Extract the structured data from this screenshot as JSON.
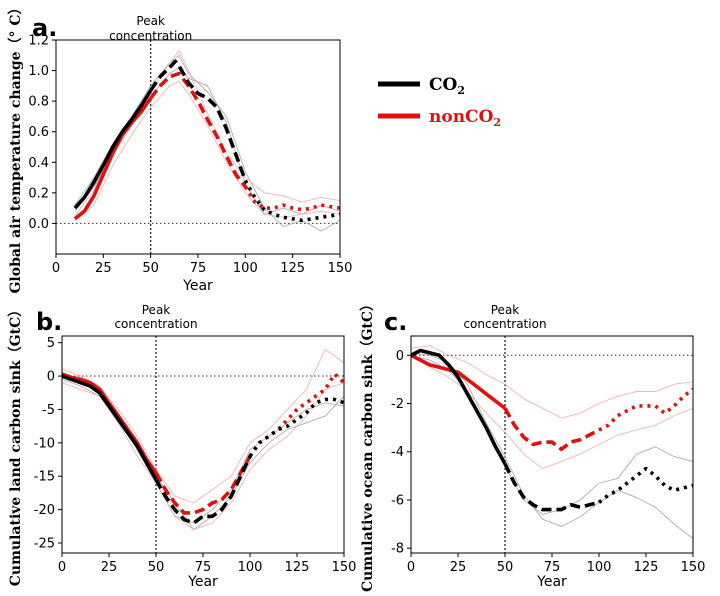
{
  "legend": {
    "items": [
      {
        "main": "CO",
        "sub": "2",
        "color": "#000000"
      },
      {
        "main": "nonCO",
        "sub": "2",
        "color": "#e01010"
      }
    ]
  },
  "colors": {
    "co2": "#000000",
    "nonco2": "#e01010",
    "co2_faint": "#9a9a9a",
    "nonco2_faint": "#f3a0a0"
  },
  "chart_data": [
    {
      "type": "line",
      "panel_label": "a.",
      "annotation": "Peak\nconcentration",
      "xlabel": "Year",
      "ylabel": "Global air temperature change（° C）",
      "xlim": [
        0,
        150
      ],
      "ylim": [
        -0.2,
        1.2
      ],
      "xticks": [
        "0",
        "25",
        "50",
        "75",
        "100",
        "125",
        "150"
      ],
      "yticks": [
        "0.0",
        "0.2",
        "0.4",
        "0.6",
        "0.8",
        "1.0",
        "1.2"
      ],
      "vline_x": 50,
      "hline_y": 0,
      "segment_breaks": [
        50,
        100
      ],
      "series": [
        {
          "name": "CO2",
          "x": [
            10,
            15,
            20,
            25,
            30,
            35,
            40,
            45,
            50,
            55,
            60,
            63,
            65,
            70,
            75,
            80,
            85,
            90,
            95,
            100,
            105,
            110,
            115,
            120,
            125,
            130,
            135,
            140,
            145,
            150
          ],
          "y": [
            0.1,
            0.17,
            0.27,
            0.38,
            0.5,
            0.6,
            0.68,
            0.77,
            0.87,
            0.96,
            1.02,
            1.06,
            1.03,
            0.92,
            0.85,
            0.82,
            0.76,
            0.62,
            0.45,
            0.28,
            0.17,
            0.09,
            0.06,
            0.04,
            0.03,
            0.02,
            0.03,
            0.04,
            0.05,
            0.06
          ]
        },
        {
          "name": "nonCO2",
          "x": [
            10,
            15,
            20,
            25,
            30,
            35,
            40,
            45,
            50,
            55,
            60,
            65,
            70,
            75,
            80,
            85,
            90,
            95,
            100,
            105,
            110,
            115,
            120,
            125,
            130,
            135,
            140,
            145,
            150
          ],
          "y": [
            0.03,
            0.08,
            0.18,
            0.32,
            0.46,
            0.58,
            0.66,
            0.73,
            0.82,
            0.9,
            0.96,
            0.98,
            0.9,
            0.8,
            0.68,
            0.57,
            0.44,
            0.32,
            0.24,
            0.14,
            0.1,
            0.1,
            0.12,
            0.1,
            0.09,
            0.1,
            0.12,
            0.11,
            0.1
          ]
        }
      ],
      "faint_series": [
        {
          "group": "CO2",
          "x": [
            10,
            20,
            30,
            40,
            50,
            60,
            65,
            70,
            80,
            90,
            100,
            110,
            120,
            130,
            140,
            150
          ],
          "y": [
            0.12,
            0.3,
            0.52,
            0.7,
            0.9,
            1.05,
            1.1,
            0.98,
            0.86,
            0.7,
            0.34,
            0.1,
            -0.02,
            0.02,
            -0.05,
            0.02
          ]
        },
        {
          "group": "CO2",
          "x": [
            10,
            20,
            30,
            40,
            50,
            60,
            65,
            70,
            80,
            90,
            100,
            110,
            120,
            130,
            140,
            150
          ],
          "y": [
            0.08,
            0.24,
            0.45,
            0.64,
            0.83,
            0.98,
            1.02,
            0.95,
            0.9,
            0.66,
            0.26,
            0.06,
            0.1,
            0.06,
            0.12,
            0.08
          ]
        },
        {
          "group": "nonCO2",
          "x": [
            10,
            20,
            30,
            40,
            50,
            60,
            65,
            70,
            80,
            90,
            100,
            110,
            120,
            130,
            140,
            150
          ],
          "y": [
            0.05,
            0.22,
            0.5,
            0.7,
            0.86,
            1.05,
            1.13,
            1.0,
            0.72,
            0.46,
            0.3,
            0.2,
            0.18,
            0.14,
            0.17,
            0.15
          ]
        },
        {
          "group": "nonCO2",
          "x": [
            10,
            20,
            30,
            40,
            50,
            60,
            65,
            70,
            80,
            90,
            100,
            110,
            120,
            130,
            140,
            150
          ],
          "y": [
            0.02,
            0.12,
            0.38,
            0.58,
            0.76,
            0.9,
            0.93,
            0.85,
            0.64,
            0.4,
            0.2,
            0.06,
            0.04,
            0.06,
            0.08,
            0.06
          ]
        }
      ]
    },
    {
      "type": "line",
      "panel_label": "b.",
      "annotation": "Peak\nconcentration",
      "xlabel": "Year",
      "ylabel": "Cumulative land carbon sink（GtC）",
      "xlim": [
        0,
        150
      ],
      "ylim": [
        -26.5,
        6
      ],
      "xticks": [
        "0",
        "25",
        "50",
        "75",
        "100",
        "125",
        "150"
      ],
      "yticks": [
        "5",
        "0",
        "-5",
        "-10",
        "-15",
        "-20",
        "-25"
      ],
      "vline_x": 50,
      "hline_y": 0,
      "segment_breaks": [
        50,
        100
      ],
      "series": [
        {
          "name": "CO2",
          "x": [
            0,
            5,
            10,
            15,
            20,
            25,
            30,
            35,
            40,
            45,
            50,
            55,
            60,
            65,
            70,
            75,
            80,
            85,
            90,
            95,
            100,
            105,
            110,
            115,
            120,
            125,
            130,
            135,
            140,
            145,
            150
          ],
          "y": [
            0,
            -0.5,
            -1,
            -1.5,
            -2.5,
            -4.5,
            -6.5,
            -8.5,
            -10.5,
            -13,
            -15.5,
            -18,
            -20,
            -21.5,
            -22,
            -21,
            -21,
            -20,
            -18,
            -15,
            -12,
            -10,
            -9,
            -8,
            -7.5,
            -6.5,
            -5.5,
            -4,
            -3.5,
            -3.5,
            -4
          ]
        },
        {
          "name": "nonCO2",
          "x": [
            0,
            5,
            10,
            15,
            20,
            25,
            30,
            35,
            40,
            45,
            50,
            55,
            60,
            65,
            70,
            75,
            80,
            85,
            90,
            95,
            100,
            105,
            110,
            115,
            120,
            125,
            130,
            135,
            140,
            145,
            150
          ],
          "y": [
            0.3,
            -0.2,
            -0.5,
            -1,
            -2,
            -4,
            -6,
            -8,
            -10,
            -12.5,
            -14.5,
            -17,
            -19,
            -20.5,
            -20.5,
            -20,
            -19,
            -18.5,
            -17,
            -14.5,
            -12,
            -10,
            -9,
            -8,
            -6.5,
            -5,
            -4,
            -3,
            -2,
            0.3,
            -1
          ]
        }
      ],
      "faint_series": [
        {
          "group": "CO2",
          "x": [
            0,
            10,
            20,
            30,
            40,
            50,
            60,
            70,
            80,
            90,
            100,
            110,
            120,
            130,
            140,
            150
          ],
          "y": [
            0.5,
            -0.5,
            -2,
            -6,
            -11,
            -16,
            -21,
            -22,
            -20,
            -17,
            -11,
            -9,
            -7,
            -5,
            -4,
            -4.5
          ]
        },
        {
          "group": "CO2",
          "x": [
            0,
            10,
            20,
            30,
            40,
            50,
            60,
            70,
            80,
            90,
            100,
            110,
            120,
            130,
            140,
            150
          ],
          "y": [
            -0.5,
            -1.5,
            -3,
            -7,
            -10,
            -15,
            -19,
            -23,
            -21,
            -18,
            -13,
            -10,
            -8,
            -7,
            -6,
            -3
          ]
        },
        {
          "group": "nonCO2",
          "x": [
            0,
            10,
            20,
            30,
            40,
            50,
            60,
            70,
            80,
            90,
            100,
            110,
            120,
            130,
            140,
            150
          ],
          "y": [
            1,
            0,
            -1.5,
            -5,
            -9,
            -14,
            -18,
            -19,
            -17,
            -15,
            -10,
            -8,
            -5,
            -2,
            4,
            2
          ]
        },
        {
          "group": "nonCO2",
          "x": [
            0,
            10,
            20,
            30,
            40,
            50,
            60,
            70,
            80,
            90,
            100,
            110,
            120,
            130,
            140,
            150
          ],
          "y": [
            -1,
            -2,
            -3,
            -7,
            -12,
            -16,
            -21,
            -23,
            -22,
            -19,
            -14,
            -11,
            -9,
            -6,
            -2,
            -1
          ]
        }
      ]
    },
    {
      "type": "line",
      "panel_label": "c.",
      "annotation": "Peak\nconcentration",
      "xlabel": "Year",
      "ylabel": "Cumulative ocean carbon sink（GtC）",
      "xlim": [
        0,
        150
      ],
      "ylim": [
        -8.2,
        0.8
      ],
      "xticks": [
        "0",
        "25",
        "50",
        "75",
        "100",
        "125",
        "150"
      ],
      "yticks": [
        "0",
        "-2",
        "-4",
        "-6",
        "-8"
      ],
      "vline_x": 50,
      "hline_y": 0,
      "segment_breaks": [
        50,
        100
      ],
      "series": [
        {
          "name": "CO2",
          "x": [
            0,
            5,
            10,
            15,
            20,
            25,
            30,
            35,
            40,
            45,
            50,
            55,
            60,
            65,
            70,
            75,
            80,
            85,
            90,
            95,
            100,
            105,
            110,
            115,
            120,
            125,
            130,
            135,
            140,
            145,
            150
          ],
          "y": [
            0,
            0.2,
            0.1,
            0,
            -0.4,
            -0.9,
            -1.6,
            -2.3,
            -3,
            -3.8,
            -4.5,
            -5.3,
            -5.9,
            -6.2,
            -6.4,
            -6.4,
            -6.4,
            -6.2,
            -6.3,
            -6.2,
            -6.1,
            -5.8,
            -5.6,
            -5.3,
            -5,
            -4.7,
            -5,
            -5.4,
            -5.6,
            -5.5,
            -5.4
          ]
        },
        {
          "name": "nonCO2",
          "x": [
            0,
            5,
            10,
            15,
            20,
            25,
            30,
            35,
            40,
            45,
            50,
            55,
            60,
            65,
            70,
            75,
            80,
            85,
            90,
            95,
            100,
            105,
            110,
            115,
            120,
            125,
            130,
            135,
            140,
            145,
            150
          ],
          "y": [
            0,
            -0.2,
            -0.4,
            -0.5,
            -0.6,
            -0.7,
            -1,
            -1.3,
            -1.6,
            -1.9,
            -2.2,
            -2.9,
            -3.4,
            -3.7,
            -3.6,
            -3.6,
            -3.9,
            -3.6,
            -3.5,
            -3.3,
            -3.1,
            -2.9,
            -2.5,
            -2.3,
            -2.1,
            -2.1,
            -2.1,
            -2.4,
            -2.1,
            -1.7,
            -1.4
          ]
        }
      ],
      "faint_series": [
        {
          "group": "CO2",
          "x": [
            0,
            10,
            20,
            30,
            40,
            50,
            60,
            70,
            80,
            90,
            100,
            110,
            120,
            130,
            140,
            150
          ],
          "y": [
            0,
            -0.2,
            -0.6,
            -1.5,
            -3.1,
            -4.6,
            -6,
            -6.6,
            -6.4,
            -6,
            -5.3,
            -5.1,
            -4.1,
            -3.8,
            -4.2,
            -4.4
          ]
        },
        {
          "group": "CO2",
          "x": [
            0,
            10,
            20,
            30,
            40,
            50,
            60,
            70,
            80,
            90,
            100,
            110,
            120,
            130,
            140,
            150
          ],
          "y": [
            0.1,
            0,
            -0.3,
            -1.2,
            -2.8,
            -4.2,
            -5.8,
            -6.8,
            -7.1,
            -6.7,
            -6.1,
            -5.6,
            -5.9,
            -6.3,
            -7,
            -7.6
          ]
        },
        {
          "group": "nonCO2",
          "x": [
            0,
            10,
            20,
            30,
            40,
            50,
            60,
            70,
            80,
            90,
            100,
            110,
            120,
            130,
            140,
            150
          ],
          "y": [
            0.3,
            0.4,
            0,
            -0.3,
            -0.8,
            -1.2,
            -1.8,
            -2.2,
            -2.6,
            -2.4,
            -2,
            -1.7,
            -1.5,
            -1.5,
            -1.2,
            -1.1
          ]
        },
        {
          "group": "nonCO2",
          "x": [
            0,
            10,
            20,
            30,
            40,
            50,
            60,
            70,
            80,
            90,
            100,
            110,
            120,
            130,
            140,
            150
          ],
          "y": [
            0,
            -0.5,
            -0.9,
            -1.5,
            -2.4,
            -3.2,
            -4.1,
            -4.7,
            -4.4,
            -4.1,
            -3.7,
            -3.3,
            -3.1,
            -2.9,
            -2.5,
            -2.2
          ]
        }
      ]
    }
  ]
}
